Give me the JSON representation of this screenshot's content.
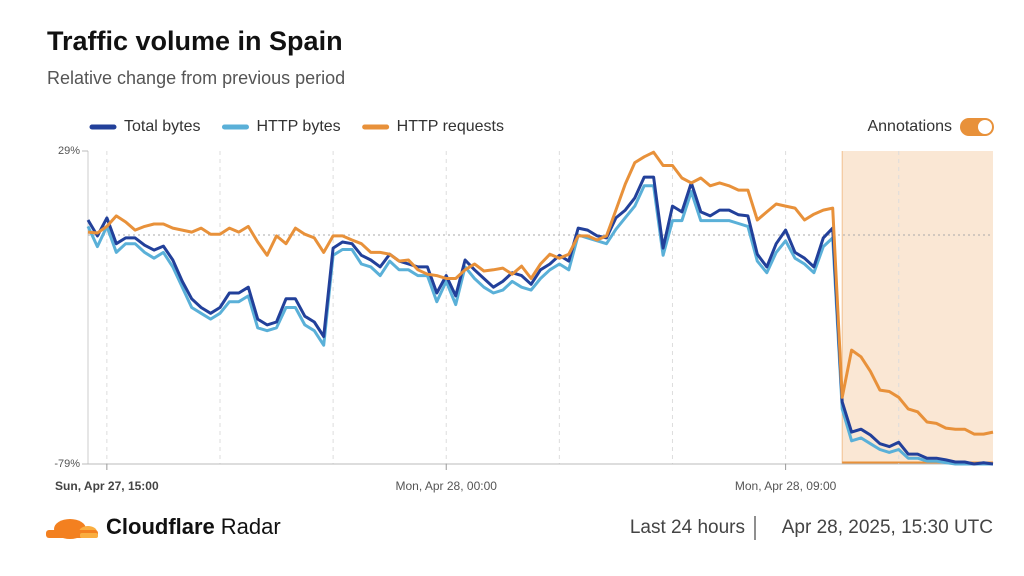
{
  "chart_data": {
    "type": "line",
    "title": "Traffic volume in Spain",
    "subtitle": "Relative change from previous period",
    "categories": [
      null,
      null,
      "Sun, Apr 27, 15:00",
      null,
      null,
      null,
      null,
      null,
      null,
      null,
      null,
      null,
      null,
      null,
      null,
      null,
      null,
      null,
      null,
      null,
      null,
      null,
      null,
      null,
      null,
      null,
      null,
      null,
      null,
      null,
      null,
      null,
      null,
      null,
      null,
      null,
      null,
      null,
      "Mon, Apr 28, 00:00",
      null,
      null,
      null,
      null,
      null,
      null,
      null,
      null,
      null,
      null,
      null,
      null,
      null,
      null,
      null,
      null,
      null,
      null,
      null,
      null,
      null,
      null,
      null,
      null,
      null,
      null,
      null,
      null,
      null,
      null,
      null,
      null,
      null,
      null,
      null,
      "Mon, Apr 28, 09:00",
      null,
      null,
      null,
      null,
      null,
      null,
      null,
      null,
      null,
      null,
      null,
      null,
      null,
      null,
      null,
      null,
      null,
      null,
      null,
      null,
      null,
      null
    ],
    "series": [
      {
        "name": "Total bytes",
        "color": "#22409a",
        "values": [
          5.2,
          -0.3,
          5.9,
          -3,
          -1,
          -1,
          -3.5,
          -5.2,
          -3.8,
          -8.6,
          -16,
          -22,
          -25,
          -27,
          -25,
          -20,
          -20,
          -18,
          -29,
          -31,
          -30,
          -22,
          -22,
          -28,
          -30,
          -35,
          -4.5,
          -2.4,
          -3,
          -7,
          -8.6,
          -11,
          -6.6,
          -9,
          -10,
          -11,
          -11,
          -20,
          -14,
          -21,
          -8.6,
          -12,
          -15,
          -18,
          -16,
          -13,
          -14,
          -17,
          -12,
          -10,
          -7,
          -9,
          2.4,
          1.7,
          -0.3,
          -1,
          5.9,
          8.6,
          12.8,
          20,
          20,
          -4.5,
          10,
          8,
          18,
          8,
          6.6,
          8.6,
          8.6,
          7,
          6.6,
          -6.6,
          -11,
          -3,
          1.7,
          -6,
          -8,
          -11,
          -1,
          2.4,
          -57.6,
          -68,
          -67,
          -69,
          -72,
          -73,
          -71.5,
          -75.6,
          -75.6,
          -77,
          -77,
          -77.6,
          -78.3,
          -78.3,
          -79,
          -78.6,
          -79
        ]
      },
      {
        "name": "HTTP bytes",
        "color": "#5ab0d8",
        "values": [
          3,
          -4,
          3,
          -6,
          -3,
          -3,
          -6,
          -8,
          -6,
          -11,
          -18,
          -25,
          -27,
          -29,
          -27,
          -23,
          -23,
          -21,
          -32,
          -33,
          -32,
          -25,
          -25,
          -31,
          -33,
          -38,
          -7,
          -5,
          -5,
          -10,
          -11,
          -14,
          -9,
          -12,
          -12,
          -14,
          -14,
          -23,
          -16,
          -24,
          -11,
          -15,
          -18,
          -20,
          -19,
          -16,
          -18,
          -19,
          -15,
          -12,
          -10,
          -12,
          0,
          -1,
          -2,
          -3,
          2,
          6,
          10,
          17,
          17,
          -7,
          5,
          5,
          15,
          5,
          5,
          5,
          5,
          4,
          3,
          -9,
          -13,
          -6,
          -2,
          -8,
          -10,
          -13,
          -4,
          -1,
          -60,
          -71,
          -70,
          -72,
          -74,
          -75,
          -74,
          -77,
          -77,
          -78,
          -78,
          -78.5,
          -79,
          -79,
          -79,
          -79,
          -79
        ]
      },
      {
        "name": "HTTP requests",
        "color": "#e8913a",
        "values": [
          1,
          0.7,
          3,
          6.6,
          4.5,
          1.7,
          3,
          3.8,
          3.8,
          2.4,
          1.7,
          1,
          2.4,
          0.3,
          0.3,
          2.4,
          1,
          3,
          -2.4,
          -7,
          -0.3,
          -3,
          2.4,
          0.3,
          -1,
          -6,
          -0.3,
          -0.3,
          -1.7,
          -3,
          -6,
          -6,
          -6.6,
          -9,
          -8.6,
          -12,
          -13.5,
          -14,
          -15,
          -15,
          -12,
          -10,
          -12.4,
          -12,
          -11.4,
          -13.5,
          -10.7,
          -15,
          -10,
          -6.6,
          -8,
          -6.6,
          -0.3,
          -0.3,
          -1.7,
          -0.3,
          8.6,
          17.6,
          25,
          27,
          28.6,
          24,
          24,
          19.7,
          18,
          19.7,
          17,
          18,
          17,
          15.5,
          15.5,
          5.2,
          8,
          10.7,
          10,
          9.3,
          5.2,
          7.2,
          8.6,
          9.3,
          -56,
          -39.7,
          -42,
          -47,
          -53.5,
          -54,
          -56,
          -60,
          -61,
          -64.5,
          -65,
          -66.6,
          -67,
          -67,
          -68.7,
          -68.7,
          -68
        ]
      }
    ],
    "ylim": [
      -79,
      29
    ],
    "yticks": [
      {
        "value": -79,
        "label": "-79%"
      },
      {
        "value": 29,
        "label": "29%"
      }
    ],
    "zero_line": true,
    "grid": true,
    "legend": "top-left",
    "annotations": {
      "label": "Annotations",
      "enabled": true,
      "color": "#e8913a",
      "x_range": [
        80,
        96
      ]
    }
  },
  "footer": {
    "brand": "Cloudflare",
    "product": "Radar",
    "period": "Last 24 hours",
    "timestamp": "Apr 28, 2025, 15:30 UTC"
  }
}
